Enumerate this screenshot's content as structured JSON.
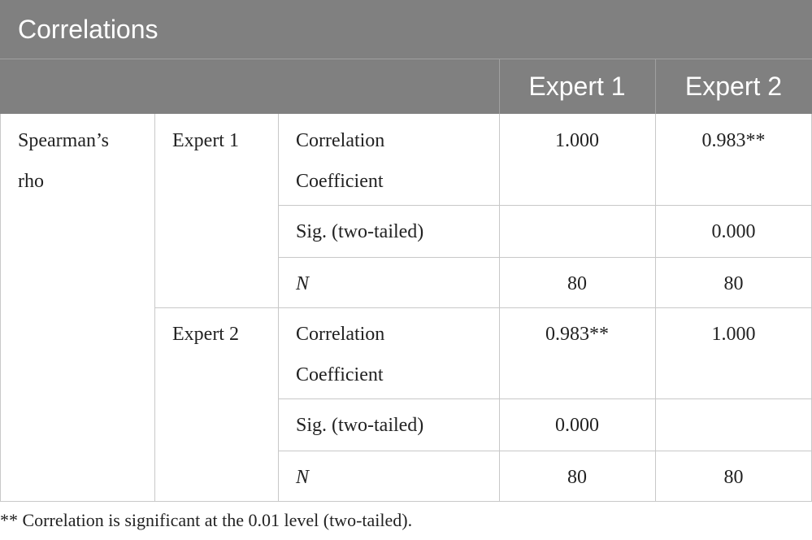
{
  "title": "Correlations",
  "header": [
    "Expert 1",
    "Expert 2"
  ],
  "group": "Spearman’s rho",
  "blocks": [
    {
      "label": "Expert 1",
      "rows": [
        {
          "measure": "Correlation Coefficient",
          "values": [
            "1.000",
            "0.983**"
          ]
        },
        {
          "measure": "Sig. (two-tailed)",
          "values": [
            null,
            "0.000"
          ]
        },
        {
          "measure": "N",
          "values": [
            "80",
            "80"
          ]
        }
      ]
    },
    {
      "label": "Expert 2",
      "rows": [
        {
          "measure": "Correlation Coefficient",
          "values": [
            "0.983**",
            "1.000"
          ]
        },
        {
          "measure": "Sig. (two-tailed)",
          "values": [
            "0.000",
            null
          ]
        },
        {
          "measure": "N",
          "values": [
            "80",
            "80"
          ]
        }
      ]
    }
  ],
  "footnote": "** Correlation is significant at the 0.01 level (two-tailed)."
}
